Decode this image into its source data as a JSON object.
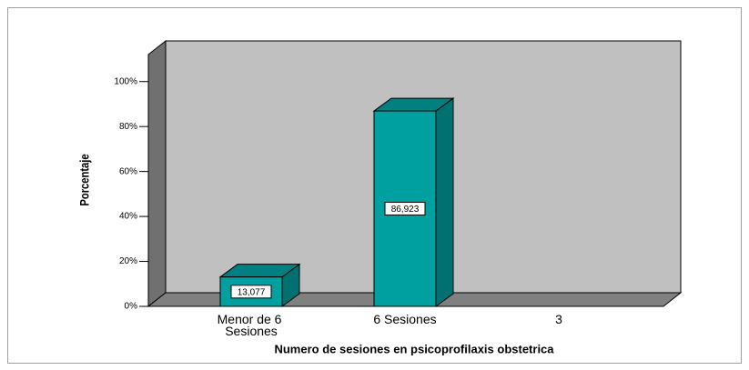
{
  "chart_data": {
    "type": "bar3d",
    "x_label": "Numero de sesiones en psicoprofilaxis obstetrica",
    "y_label": "Porcentaje",
    "categories": [
      "Menor de 6 Sesiones",
      "6 Sesiones",
      "3"
    ],
    "values": [
      13.077,
      86.923,
      null
    ],
    "value_labels": [
      "13,077",
      "86,923",
      null
    ],
    "color": "#00a0a0",
    "ylim": [
      0,
      110
    ],
    "yticks": [
      {
        "value": 0,
        "label": "0%"
      },
      {
        "value": 20,
        "label": "20%"
      },
      {
        "value": 40,
        "label": "40%"
      },
      {
        "value": 60,
        "label": "60%"
      },
      {
        "value": 80,
        "label": "80%"
      },
      {
        "value": 100,
        "label": "100%"
      }
    ]
  }
}
